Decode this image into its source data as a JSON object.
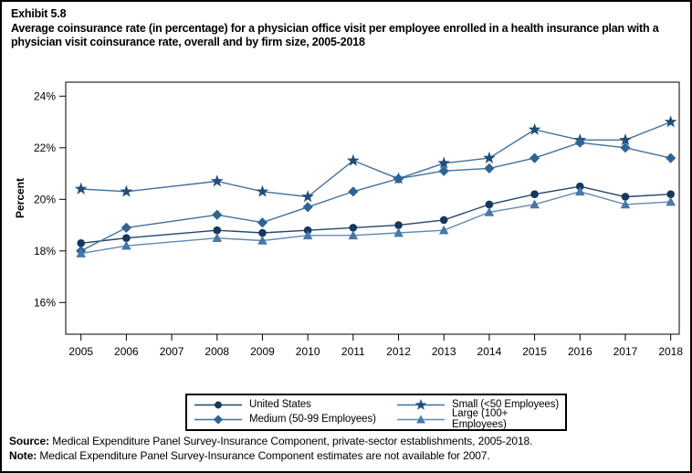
{
  "header": {
    "exhibit_label": "Exhibit 5.8",
    "title": "Average coinsurance rate (in percentage) for a physician office visit per employee enrolled in a health insurance plan with a physician visit coinsurance rate, overall and by firm size, 2005-2018"
  },
  "chart_data": {
    "type": "line",
    "x": [
      2005,
      2006,
      2007,
      2008,
      2009,
      2010,
      2011,
      2012,
      2013,
      2014,
      2015,
      2016,
      2017,
      2018
    ],
    "x_tick_labels": [
      "2005",
      "2006",
      "2007",
      "2008",
      "2009",
      "2010",
      "2011",
      "2012",
      "2013",
      "2014",
      "2015",
      "2016",
      "2017",
      "2018"
    ],
    "ylabel": "Percent",
    "yticks": [
      16,
      18,
      20,
      22,
      24
    ],
    "ytick_labels": [
      "16%",
      "18%",
      "20%",
      "22%",
      "24%"
    ],
    "ylim": [
      14.8,
      24.5
    ],
    "grid": false,
    "missing_years": [
      2007
    ],
    "legend_position": "bottom-center",
    "series": [
      {
        "name": "United States",
        "marker": "circle",
        "marker_color": "#17375E",
        "line_color": "#24466B",
        "values": [
          18.3,
          18.5,
          null,
          18.8,
          18.7,
          18.8,
          18.9,
          19.0,
          19.2,
          19.8,
          20.2,
          20.5,
          20.1,
          20.2
        ]
      },
      {
        "name": "Small (<50 Employees)",
        "marker": "star",
        "marker_color": "#1F4E79",
        "line_color": "#41719C",
        "values": [
          20.4,
          20.3,
          null,
          20.7,
          20.3,
          20.1,
          21.5,
          20.8,
          21.4,
          21.6,
          22.7,
          22.3,
          22.3,
          23.0
        ]
      },
      {
        "name": "Medium (50-99 Employees)",
        "marker": "diamond",
        "marker_color": "#2E6496",
        "line_color": "#41719C",
        "values": [
          18.0,
          18.9,
          null,
          19.4,
          19.1,
          19.7,
          20.3,
          20.8,
          21.1,
          21.2,
          21.6,
          22.2,
          22.0,
          21.6
        ]
      },
      {
        "name": "Large (100+ Employees)",
        "marker": "triangle",
        "marker_color": "#4878A8",
        "line_color": "#5E8AB4",
        "values": [
          17.9,
          18.2,
          null,
          18.5,
          18.4,
          18.6,
          18.6,
          18.7,
          18.8,
          19.5,
          19.8,
          20.3,
          19.8,
          19.9
        ]
      }
    ]
  },
  "footer": {
    "source_label": "Source:",
    "source_text": " Medical Expenditure Panel Survey-Insurance Component, private-sector establishments, 2005-2018.",
    "note_label": "Note:",
    "note_text": " Medical Expenditure Panel Survey-Insurance Component estimates are not available for 2007."
  }
}
